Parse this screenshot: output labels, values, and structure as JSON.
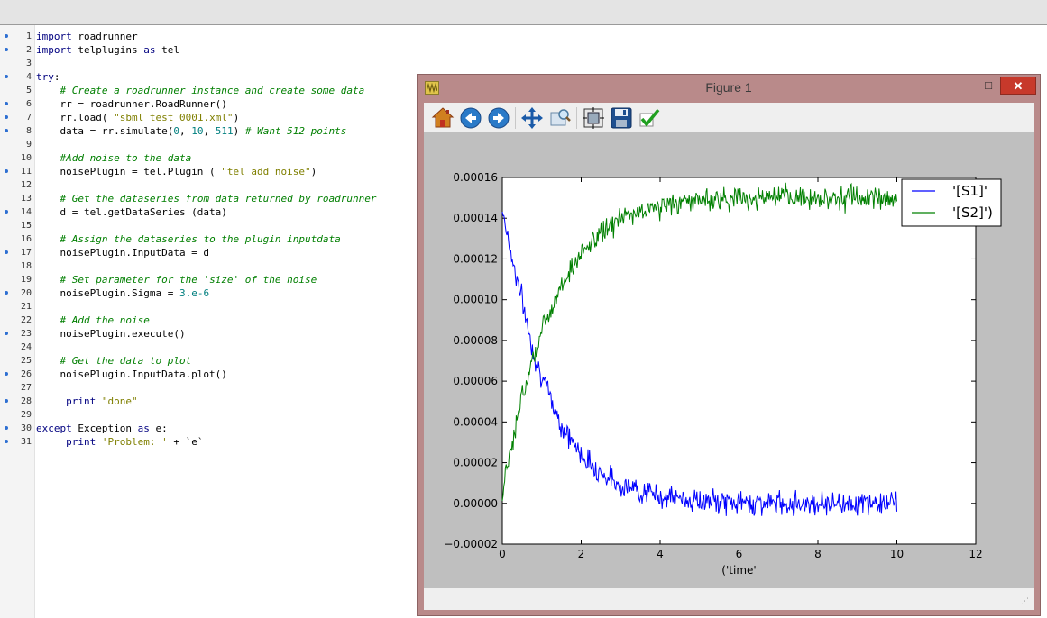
{
  "editor": {
    "lines": [
      {
        "n": "1",
        "marker": true,
        "parts": [
          [
            "kw",
            "import"
          ],
          [
            "",
            "roadrunner"
          ]
        ]
      },
      {
        "n": "2",
        "marker": true,
        "parts": [
          [
            "kw",
            "import"
          ],
          [
            "",
            "telplugins"
          ],
          [
            "kw",
            "as"
          ],
          [
            "",
            "tel"
          ]
        ]
      },
      {
        "n": "3",
        "marker": false,
        "parts": []
      },
      {
        "n": "4",
        "marker": true,
        "parts": [
          [
            "kw",
            "try"
          ],
          [
            "",
            ":"
          ]
        ]
      },
      {
        "n": "5",
        "marker": false,
        "parts": [
          [
            "",
            "    "
          ],
          [
            "cm",
            "# Create a roadrunner instance and create some data"
          ]
        ]
      },
      {
        "n": "6",
        "marker": true,
        "parts": [
          [
            "",
            "    rr = roadrunner.RoadRunner()"
          ]
        ]
      },
      {
        "n": "7",
        "marker": true,
        "parts": [
          [
            "",
            "    rr.load("
          ],
          [
            "st",
            "\"sbml_test_0001.xml\""
          ],
          [
            "",
            ")"
          ]
        ]
      },
      {
        "n": "8",
        "marker": true,
        "parts": [
          [
            "",
            "    data = rr.simulate("
          ],
          [
            "nm",
            "0"
          ],
          [
            "",
            ", "
          ],
          [
            "nm",
            "10"
          ],
          [
            "",
            ", "
          ],
          [
            "nm",
            "511"
          ],
          [
            "",
            ") "
          ],
          [
            "cm",
            "# Want 512 points"
          ]
        ]
      },
      {
        "n": "9",
        "marker": false,
        "parts": []
      },
      {
        "n": "10",
        "marker": false,
        "parts": [
          [
            "",
            "    "
          ],
          [
            "cm",
            "#Add noise to the data"
          ]
        ]
      },
      {
        "n": "11",
        "marker": true,
        "parts": [
          [
            "",
            "    noisePlugin = tel.Plugin ("
          ],
          [
            "st",
            "\"tel_add_noise\""
          ],
          [
            "",
            ")"
          ]
        ]
      },
      {
        "n": "12",
        "marker": false,
        "parts": []
      },
      {
        "n": "13",
        "marker": false,
        "parts": [
          [
            "",
            "    "
          ],
          [
            "cm",
            "# Get the dataseries from data returned by roadrunner"
          ]
        ]
      },
      {
        "n": "14",
        "marker": true,
        "parts": [
          [
            "",
            "    d = tel.getDataSeries (data)"
          ]
        ]
      },
      {
        "n": "15",
        "marker": false,
        "parts": []
      },
      {
        "n": "16",
        "marker": false,
        "parts": [
          [
            "",
            "    "
          ],
          [
            "cm",
            "# Assign the dataseries to the plugin inputdata"
          ]
        ]
      },
      {
        "n": "17",
        "marker": true,
        "parts": [
          [
            "",
            "    noisePlugin.InputData = d"
          ]
        ]
      },
      {
        "n": "18",
        "marker": false,
        "parts": []
      },
      {
        "n": "19",
        "marker": false,
        "parts": [
          [
            "",
            "    "
          ],
          [
            "cm",
            "# Set parameter for the 'size' of the noise"
          ]
        ]
      },
      {
        "n": "20",
        "marker": true,
        "parts": [
          [
            "",
            "    noisePlugin.Sigma = "
          ],
          [
            "nm",
            "3.e-6"
          ]
        ]
      },
      {
        "n": "21",
        "marker": false,
        "parts": []
      },
      {
        "n": "22",
        "marker": false,
        "parts": [
          [
            "",
            "    "
          ],
          [
            "cm",
            "# Add the noise"
          ]
        ]
      },
      {
        "n": "23",
        "marker": true,
        "parts": [
          [
            "",
            "    noisePlugin.execute()"
          ]
        ]
      },
      {
        "n": "24",
        "marker": false,
        "parts": []
      },
      {
        "n": "25",
        "marker": false,
        "parts": [
          [
            "",
            "    "
          ],
          [
            "cm",
            "# Get the data to plot"
          ]
        ]
      },
      {
        "n": "26",
        "marker": true,
        "parts": [
          [
            "",
            "    noisePlugin.InputData.plot()"
          ]
        ]
      },
      {
        "n": "27",
        "marker": false,
        "parts": []
      },
      {
        "n": "28",
        "marker": true,
        "parts": [
          [
            "",
            "    "
          ],
          [
            "kw",
            "print"
          ],
          [
            "st",
            "\"done\""
          ]
        ]
      },
      {
        "n": "29",
        "marker": false,
        "parts": []
      },
      {
        "n": "30",
        "marker": true,
        "parts": [
          [
            "kw",
            "except"
          ],
          [
            "",
            "Exception"
          ],
          [
            "kw",
            "as"
          ],
          [
            "",
            "e:"
          ]
        ]
      },
      {
        "n": "31",
        "marker": true,
        "parts": [
          [
            "",
            "    "
          ],
          [
            "kw",
            "print"
          ],
          [
            "st",
            "'Problem: '"
          ],
          [
            "",
            " + `e`"
          ]
        ]
      }
    ]
  },
  "figure": {
    "window_title": "Figure 1",
    "minimize_label": "‒",
    "maximize_label": "□",
    "close_label": "✕",
    "toolbar": [
      "home-icon",
      "back-icon",
      "forward-icon",
      "pan-icon",
      "zoom-icon",
      "subplots-icon",
      "save-icon",
      "edit-icon"
    ],
    "grip": "⋰"
  },
  "colors": {
    "s1": "#0000ff",
    "s2": "#008000"
  },
  "chart_data": {
    "type": "line",
    "xlabel": "('time'",
    "ylabel": "",
    "xlim": [
      0,
      12
    ],
    "ylim": [
      -2e-05,
      0.00016
    ],
    "xticks": [
      0,
      2,
      4,
      6,
      8,
      10,
      12
    ],
    "xtick_labels": [
      "0",
      "2",
      "4",
      "6",
      "8",
      "10",
      "12"
    ],
    "yticks": [
      -2e-05,
      0,
      2e-05,
      4e-05,
      6e-05,
      8e-05,
      0.0001,
      0.00012,
      0.00014,
      0.00016
    ],
    "ytick_labels": [
      "−0.00002",
      "0.00000",
      "0.00002",
      "0.00004",
      "0.00006",
      "0.00008",
      "0.00010",
      "0.00012",
      "0.00014",
      "0.00016"
    ],
    "grid": false,
    "legend_position": "top-right",
    "series": [
      {
        "name": "'[S1]'",
        "x": [
          0,
          0.25,
          0.5,
          0.75,
          1.0,
          1.5,
          2.0,
          2.5,
          3.0,
          4.0,
          5.0,
          6.0,
          7.0,
          8.0,
          9.0,
          10.0
        ],
        "values": [
          0.000145,
          0.00012,
          0.0001,
          7.7e-05,
          6.2e-05,
          3.8e-05,
          2.4e-05,
          1.5e-05,
          9e-06,
          3.5e-06,
          1e-06,
          3e-07,
          1e-07,
          1e-07,
          1e-07,
          1e-07
        ]
      },
      {
        "name": "'[S2]')",
        "x": [
          0,
          0.25,
          0.5,
          0.75,
          1.0,
          1.5,
          2.0,
          2.5,
          3.0,
          4.0,
          5.0,
          6.0,
          7.0,
          8.0,
          9.0,
          10.0
        ],
        "values": [
          5e-06,
          3e-05,
          5.2e-05,
          7e-05,
          8.5e-05,
          0.000108,
          0.000122,
          0.000133,
          0.00014,
          0.000146,
          0.000149,
          0.00015,
          0.00015,
          0.00015,
          0.00015,
          0.00015
        ]
      }
    ]
  }
}
